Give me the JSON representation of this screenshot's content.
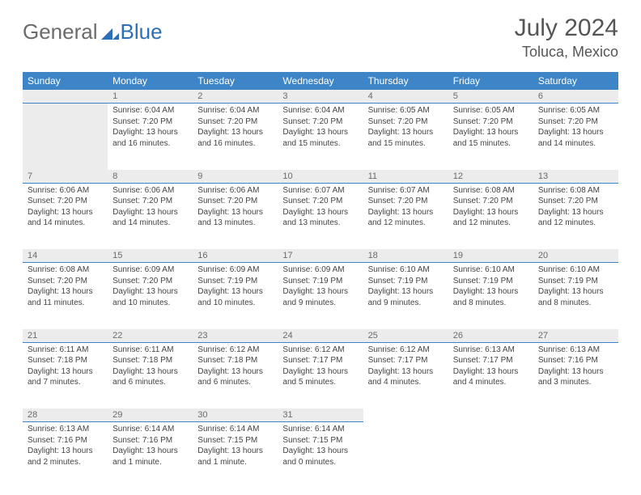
{
  "brand": {
    "part1": "General",
    "part2": "Blue"
  },
  "title": "July 2024",
  "location": "Toluca, Mexico",
  "colors": {
    "header_bg": "#3d85c6",
    "header_text": "#ffffff",
    "daynum_bg": "#ececec",
    "daynum_text": "#6b6b6b",
    "cell_text": "#444444",
    "title_text": "#555555",
    "logo_gray": "#6b6b6b",
    "logo_blue": "#2d6fb5",
    "row_divider": "#3d85c6",
    "page_bg": "#ffffff"
  },
  "fonts": {
    "base_family": "Arial",
    "title_size_pt": 22,
    "location_size_pt": 14,
    "weekday_size_pt": 9,
    "cell_size_pt": 8
  },
  "weekdays": [
    "Sunday",
    "Monday",
    "Tuesday",
    "Wednesday",
    "Thursday",
    "Friday",
    "Saturday"
  ],
  "layout": {
    "first_weekday_index": 1,
    "days_in_month": 31
  },
  "days": {
    "1": {
      "sunrise": "6:04 AM",
      "sunset": "7:20 PM",
      "daylight": "13 hours and 16 minutes."
    },
    "2": {
      "sunrise": "6:04 AM",
      "sunset": "7:20 PM",
      "daylight": "13 hours and 16 minutes."
    },
    "3": {
      "sunrise": "6:04 AM",
      "sunset": "7:20 PM",
      "daylight": "13 hours and 15 minutes."
    },
    "4": {
      "sunrise": "6:05 AM",
      "sunset": "7:20 PM",
      "daylight": "13 hours and 15 minutes."
    },
    "5": {
      "sunrise": "6:05 AM",
      "sunset": "7:20 PM",
      "daylight": "13 hours and 15 minutes."
    },
    "6": {
      "sunrise": "6:05 AM",
      "sunset": "7:20 PM",
      "daylight": "13 hours and 14 minutes."
    },
    "7": {
      "sunrise": "6:06 AM",
      "sunset": "7:20 PM",
      "daylight": "13 hours and 14 minutes."
    },
    "8": {
      "sunrise": "6:06 AM",
      "sunset": "7:20 PM",
      "daylight": "13 hours and 14 minutes."
    },
    "9": {
      "sunrise": "6:06 AM",
      "sunset": "7:20 PM",
      "daylight": "13 hours and 13 minutes."
    },
    "10": {
      "sunrise": "6:07 AM",
      "sunset": "7:20 PM",
      "daylight": "13 hours and 13 minutes."
    },
    "11": {
      "sunrise": "6:07 AM",
      "sunset": "7:20 PM",
      "daylight": "13 hours and 12 minutes."
    },
    "12": {
      "sunrise": "6:08 AM",
      "sunset": "7:20 PM",
      "daylight": "13 hours and 12 minutes."
    },
    "13": {
      "sunrise": "6:08 AM",
      "sunset": "7:20 PM",
      "daylight": "13 hours and 12 minutes."
    },
    "14": {
      "sunrise": "6:08 AM",
      "sunset": "7:20 PM",
      "daylight": "13 hours and 11 minutes."
    },
    "15": {
      "sunrise": "6:09 AM",
      "sunset": "7:20 PM",
      "daylight": "13 hours and 10 minutes."
    },
    "16": {
      "sunrise": "6:09 AM",
      "sunset": "7:19 PM",
      "daylight": "13 hours and 10 minutes."
    },
    "17": {
      "sunrise": "6:09 AM",
      "sunset": "7:19 PM",
      "daylight": "13 hours and 9 minutes."
    },
    "18": {
      "sunrise": "6:10 AM",
      "sunset": "7:19 PM",
      "daylight": "13 hours and 9 minutes."
    },
    "19": {
      "sunrise": "6:10 AM",
      "sunset": "7:19 PM",
      "daylight": "13 hours and 8 minutes."
    },
    "20": {
      "sunrise": "6:10 AM",
      "sunset": "7:19 PM",
      "daylight": "13 hours and 8 minutes."
    },
    "21": {
      "sunrise": "6:11 AM",
      "sunset": "7:18 PM",
      "daylight": "13 hours and 7 minutes."
    },
    "22": {
      "sunrise": "6:11 AM",
      "sunset": "7:18 PM",
      "daylight": "13 hours and 6 minutes."
    },
    "23": {
      "sunrise": "6:12 AM",
      "sunset": "7:18 PM",
      "daylight": "13 hours and 6 minutes."
    },
    "24": {
      "sunrise": "6:12 AM",
      "sunset": "7:17 PM",
      "daylight": "13 hours and 5 minutes."
    },
    "25": {
      "sunrise": "6:12 AM",
      "sunset": "7:17 PM",
      "daylight": "13 hours and 4 minutes."
    },
    "26": {
      "sunrise": "6:13 AM",
      "sunset": "7:17 PM",
      "daylight": "13 hours and 4 minutes."
    },
    "27": {
      "sunrise": "6:13 AM",
      "sunset": "7:16 PM",
      "daylight": "13 hours and 3 minutes."
    },
    "28": {
      "sunrise": "6:13 AM",
      "sunset": "7:16 PM",
      "daylight": "13 hours and 2 minutes."
    },
    "29": {
      "sunrise": "6:14 AM",
      "sunset": "7:16 PM",
      "daylight": "13 hours and 1 minute."
    },
    "30": {
      "sunrise": "6:14 AM",
      "sunset": "7:15 PM",
      "daylight": "13 hours and 1 minute."
    },
    "31": {
      "sunrise": "6:14 AM",
      "sunset": "7:15 PM",
      "daylight": "13 hours and 0 minutes."
    }
  },
  "labels": {
    "sunrise": "Sunrise: ",
    "sunset": "Sunset: ",
    "daylight": "Daylight: "
  }
}
